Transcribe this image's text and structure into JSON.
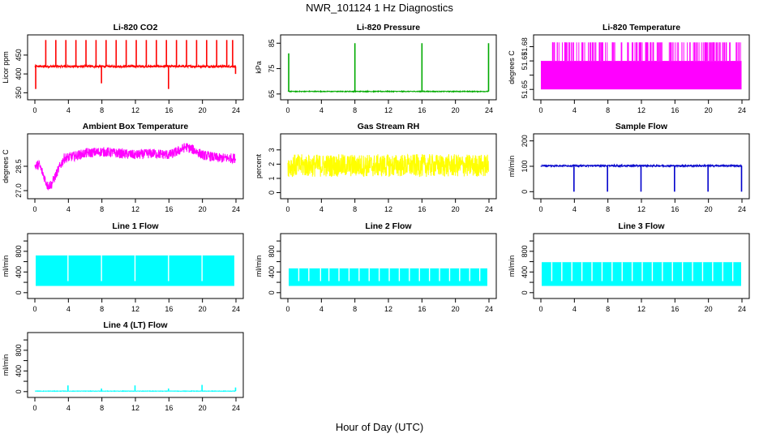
{
  "figure": {
    "title": "NWR_101124  1 Hz Diagnostics",
    "xlabel": "Hour of Day (UTC)"
  },
  "chart_data": [
    {
      "type": "line",
      "title": "Li-820 CO2",
      "ylabel": "Licor ppm",
      "color": "#ff0000",
      "xlim": [
        0,
        24
      ],
      "ylim": [
        340,
        495
      ],
      "xticks": [
        0,
        4,
        8,
        12,
        16,
        20,
        24
      ],
      "yticks": [
        350,
        400,
        450
      ],
      "ytick_labels": [
        "350",
        "400",
        "450"
      ],
      "baseline": 420,
      "noise": 3,
      "spikes": [
        [
          0.1,
          360
        ],
        [
          1.3,
          490
        ],
        [
          2.5,
          490
        ],
        [
          3.7,
          490
        ],
        [
          4.9,
          490
        ],
        [
          6.1,
          490
        ],
        [
          7.3,
          490
        ],
        [
          7.95,
          375
        ],
        [
          8.5,
          490
        ],
        [
          9.7,
          490
        ],
        [
          10.9,
          490
        ],
        [
          12.1,
          490
        ],
        [
          13.3,
          490
        ],
        [
          14.5,
          490
        ],
        [
          15.7,
          490
        ],
        [
          15.95,
          360
        ],
        [
          16.9,
          490
        ],
        [
          18.1,
          490
        ],
        [
          19.3,
          490
        ],
        [
          20.5,
          490
        ],
        [
          21.7,
          490
        ],
        [
          22.9,
          490
        ],
        [
          23.6,
          490
        ],
        [
          23.95,
          400
        ]
      ]
    },
    {
      "type": "line",
      "title": "Li-820 Pressure",
      "ylabel": "kPa",
      "color": "#00aa00",
      "xlim": [
        0,
        24
      ],
      "ylim": [
        64,
        87
      ],
      "xticks": [
        0,
        4,
        8,
        12,
        16,
        20,
        24
      ],
      "yticks": [
        65,
        75,
        85
      ],
      "ytick_labels": [
        "65",
        "75",
        "85"
      ],
      "baseline": 66,
      "noise": 0.15,
      "spikes": [
        [
          0.1,
          81
        ],
        [
          8.0,
          85
        ],
        [
          16.0,
          85
        ],
        [
          23.95,
          85
        ]
      ]
    },
    {
      "type": "step",
      "title": "Li-820 Temperature",
      "ylabel": "degrees C",
      "color": "#ff00ff",
      "xlim": [
        0,
        24
      ],
      "ylim": [
        51.645,
        51.686
      ],
      "xticks": [
        0,
        4,
        8,
        12,
        16,
        20,
        24
      ],
      "yticks": [
        51.65,
        51.66,
        51.67,
        51.68
      ],
      "ytick_labels": [
        "51.65",
        "",
        "51.67",
        "51.68"
      ],
      "low": 51.65,
      "high": 51.67,
      "top": 51.683,
      "fill_from": 0.0,
      "fill_to": 23.95
    },
    {
      "type": "line",
      "title": "Ambient Box Temperature",
      "ylabel": "degrees C",
      "color": "#ff00ff",
      "xlim": [
        0,
        24
      ],
      "ylim": [
        26.7,
        30.3
      ],
      "xticks": [
        0,
        4,
        8,
        12,
        16,
        20,
        24
      ],
      "yticks": [
        27.0,
        28.5
      ],
      "ytick_labels": [
        "27.0",
        "28.5"
      ],
      "noise": 0.3,
      "trend": [
        [
          0,
          28.5
        ],
        [
          0.5,
          28.6
        ],
        [
          1.0,
          28.0
        ],
        [
          1.5,
          27.3
        ],
        [
          2.0,
          27.4
        ],
        [
          2.8,
          28.3
        ],
        [
          3.5,
          29.0
        ],
        [
          4.5,
          29.1
        ],
        [
          6,
          29.3
        ],
        [
          8,
          29.4
        ],
        [
          10,
          29.3
        ],
        [
          12,
          29.2
        ],
        [
          14,
          29.3
        ],
        [
          16,
          29.2
        ],
        [
          17,
          29.4
        ],
        [
          18,
          29.7
        ],
        [
          19,
          29.5
        ],
        [
          20,
          29.2
        ],
        [
          22,
          29.0
        ],
        [
          24,
          29.0
        ]
      ]
    },
    {
      "type": "line",
      "title": "Gas Stream RH",
      "ylabel": "percent",
      "color": "#ffff00",
      "xlim": [
        0,
        24
      ],
      "ylim": [
        -0.2,
        3.9
      ],
      "xticks": [
        0,
        4,
        8,
        12,
        16,
        20,
        24
      ],
      "yticks": [
        0,
        1,
        2,
        3
      ],
      "ytick_labels": [
        "0",
        "1",
        "2",
        "3"
      ],
      "baseline": 1.9,
      "noise": 0.8
    },
    {
      "type": "line",
      "title": "Sample Flow",
      "ylabel": "ml/min",
      "color": "#0000cc",
      "xlim": [
        0,
        24
      ],
      "ylim": [
        -15,
        215
      ],
      "xticks": [
        0,
        4,
        8,
        12,
        16,
        20,
        24
      ],
      "yticks": [
        0,
        100,
        200
      ],
      "ytick_labels": [
        "0",
        "100",
        "200"
      ],
      "baseline": 102,
      "noise": 3,
      "spikes": [
        [
          3.95,
          0
        ],
        [
          7.95,
          0
        ],
        [
          11.95,
          0
        ],
        [
          15.95,
          0
        ],
        [
          19.95,
          0
        ],
        [
          23.95,
          0
        ]
      ]
    },
    {
      "type": "band",
      "title": "Line 1 Flow",
      "ylabel": "ml/min",
      "color": "#00ffff",
      "xlim": [
        0,
        24
      ],
      "ylim": [
        -50,
        1080
      ],
      "xticks": [
        0,
        4,
        8,
        12,
        16,
        20,
        24
      ],
      "yticks": [
        0,
        200,
        400,
        600,
        800,
        1000
      ],
      "ytick_labels": [
        "0",
        "",
        "400",
        "",
        "800",
        ""
      ],
      "low": 130,
      "high": 720,
      "gaps": [
        3.95,
        7.95,
        11.95,
        15.95,
        19.95
      ],
      "xstart": 0.1,
      "xend": 23.8
    },
    {
      "type": "band",
      "title": "Line 2 Flow",
      "ylabel": "ml/min",
      "color": "#00ffff",
      "xlim": [
        0,
        24
      ],
      "ylim": [
        -50,
        1080
      ],
      "xticks": [
        0,
        4,
        8,
        12,
        16,
        20,
        24
      ],
      "yticks": [
        0,
        200,
        400,
        600,
        800,
        1000
      ],
      "ytick_labels": [
        "0",
        "",
        "400",
        "",
        "800",
        ""
      ],
      "low": 130,
      "high": 470,
      "gaps": [
        1.3,
        2.5,
        3.9,
        4.9,
        6.1,
        7.3,
        8.5,
        9.7,
        10.9,
        12.1,
        13.3,
        14.5,
        15.7,
        16.9,
        18.1,
        19.3,
        20.5,
        21.7,
        22.9
      ],
      "xstart": 0.1,
      "xend": 23.8
    },
    {
      "type": "band",
      "title": "Line 3 Flow",
      "ylabel": "ml/min",
      "color": "#00ffff",
      "xlim": [
        0,
        24
      ],
      "ylim": [
        -50,
        1080
      ],
      "xticks": [
        0,
        4,
        8,
        12,
        16,
        20,
        24
      ],
      "yticks": [
        0,
        200,
        400,
        600,
        800,
        1000
      ],
      "ytick_labels": [
        "0",
        "",
        "400",
        "",
        "800",
        ""
      ],
      "low": 130,
      "high": 590,
      "gaps": [
        1.3,
        2.5,
        3.7,
        4.9,
        6.1,
        7.3,
        8.5,
        9.7,
        10.9,
        12.1,
        13.3,
        14.5,
        15.7,
        16.9,
        18.1,
        19.3,
        20.5,
        21.7,
        22.9
      ],
      "xstart": 0.1,
      "xend": 23.9
    },
    {
      "type": "line",
      "title": "Line 4 (LT) Flow",
      "ylabel": "ml/min",
      "color": "#00ffff",
      "xlim": [
        0,
        24
      ],
      "ylim": [
        -50,
        1080
      ],
      "xticks": [
        0,
        4,
        8,
        12,
        16,
        20,
        24
      ],
      "yticks": [
        0,
        200,
        400,
        600,
        800,
        1000
      ],
      "ytick_labels": [
        "0",
        "",
        "400",
        "",
        "800",
        ""
      ],
      "baseline": 10,
      "noise": 4,
      "spikes": [
        [
          3.95,
          120
        ],
        [
          7.95,
          60
        ],
        [
          11.95,
          120
        ],
        [
          15.95,
          60
        ],
        [
          19.95,
          130
        ],
        [
          23.95,
          80
        ]
      ]
    }
  ]
}
